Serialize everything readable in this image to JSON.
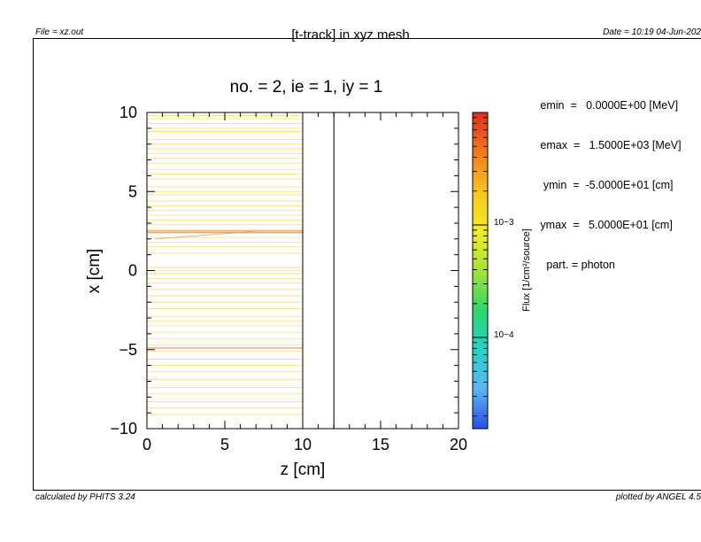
{
  "header": {
    "file": "File = xz.out",
    "title": "[t-track] in xyz mesh",
    "date": "Date = 10:19 04-Jun-202"
  },
  "footer": {
    "left": "calculated by PHITS 3.24",
    "right": "plotted by ANGEL 4.5"
  },
  "info": [
    "   emin  =   0.0000E+00 [MeV]",
    "   emax  =   1.5000E+03 [MeV]",
    "    ymin  =  -5.0000E+01 [cm]",
    "   ymax  =   5.0000E+01 [cm]",
    "     part. = photon"
  ],
  "chart_data": {
    "type": "heatmap",
    "title": "no. =  2,  ie =  1,  iy =  1",
    "xlabel": "z [cm]",
    "ylabel": "x [cm]",
    "xlim": [
      0,
      20
    ],
    "ylim": [
      -10,
      10
    ],
    "xticks": [
      "0",
      "5",
      "10",
      "15",
      "20"
    ],
    "yticks": [
      "10",
      "5",
      "0",
      "−5",
      "−10"
    ],
    "boundaries_z": [
      10,
      12
    ],
    "colorbar": {
      "label": "Flux [1/cm²/source]",
      "scale": "log",
      "ticks": [
        "10−3",
        "10−4"
      ],
      "colors": [
        "#e0301e",
        "#f07a1c",
        "#f9c41f",
        "#f2ef22",
        "#a6e337",
        "#2fd66a",
        "#25d4c8",
        "#5ab6f2",
        "#2a4de6"
      ]
    },
    "tracks": {
      "description_hidden": true,
      "z_range": [
        0,
        10
      ],
      "x_values": [
        9.8,
        9.6,
        9.3,
        9.0,
        8.8,
        8.3,
        8.0,
        7.7,
        7.4,
        7.1,
        6.8,
        6.4,
        6.1,
        5.8,
        5.3,
        5.0,
        4.8,
        4.4,
        4.1,
        3.8,
        3.5,
        3.2,
        2.9,
        2.6,
        2.5,
        2.4,
        2.1,
        1.8,
        1.5,
        1.1,
        0.2,
        0.0,
        -0.2,
        -0.5,
        -0.8,
        -1.2,
        -1.6,
        -2.0,
        -2.4,
        -2.9,
        -3.2,
        -3.5,
        -3.9,
        -4.3,
        -4.7,
        -4.9,
        -5.1,
        -5.6,
        -6.0,
        -6.4,
        -6.9,
        -7.4,
        -7.8,
        -8.3,
        -8.7,
        -9.1
      ],
      "strong_x": [
        2.5,
        2.4,
        -4.9
      ]
    }
  }
}
